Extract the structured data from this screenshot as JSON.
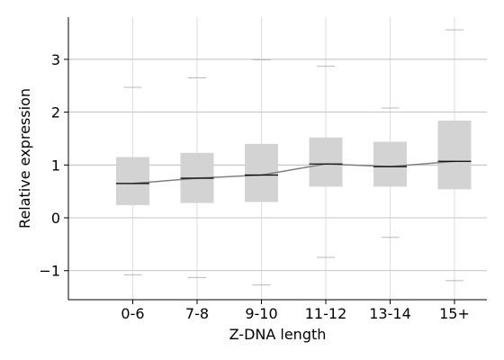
{
  "chart_data": {
    "type": "box",
    "title": "",
    "xlabel": "Z-DNA length",
    "ylabel": "Relative expression",
    "categories": [
      "0-6",
      "7-8",
      "9-10",
      "11-12",
      "13-14",
      "15+"
    ],
    "ylim": [
      -1.55,
      3.8
    ],
    "yticks": [
      -1,
      0,
      1,
      2,
      3
    ],
    "ytick_labels": [
      "−1",
      "0",
      "1",
      "2",
      "3"
    ],
    "grid": true,
    "boxes": [
      {
        "category": "0-6",
        "whisker_low": -1.08,
        "q1": 0.24,
        "median": 0.65,
        "q3": 1.15,
        "whisker_high": 2.47
      },
      {
        "category": "7-8",
        "whisker_low": -1.13,
        "q1": 0.28,
        "median": 0.75,
        "q3": 1.23,
        "whisker_high": 2.65
      },
      {
        "category": "9-10",
        "whisker_low": -1.27,
        "q1": 0.3,
        "median": 0.81,
        "q3": 1.4,
        "whisker_high": 2.99
      },
      {
        "category": "11-12",
        "whisker_low": -0.75,
        "q1": 0.59,
        "median": 1.02,
        "q3": 1.52,
        "whisker_high": 2.87
      },
      {
        "category": "13-14",
        "whisker_low": -0.37,
        "q1": 0.59,
        "median": 0.97,
        "q3": 1.44,
        "whisker_high": 2.08
      },
      {
        "category": "15+",
        "whisker_low": -1.19,
        "q1": 0.54,
        "median": 1.07,
        "q3": 1.84,
        "whisker_high": 3.56
      }
    ],
    "median_line": true,
    "colors": {
      "box": "#d3d3d3",
      "median": "#000000",
      "trend": "#808080",
      "grid": "#b0b0b0",
      "whisker": "#d3d3d3"
    }
  }
}
